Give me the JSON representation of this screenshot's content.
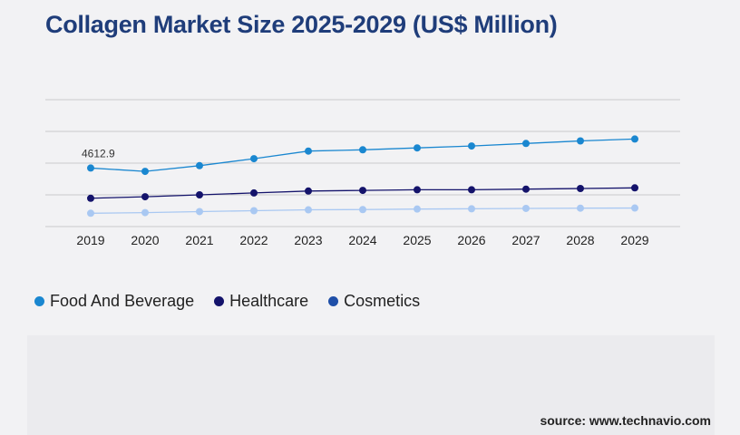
{
  "title": "Collagen Market Size 2025-2029 (US$ Million)",
  "source": "source: www.technavio.com",
  "legend": [
    {
      "label": "Food And Beverage",
      "color": "#1a87d0"
    },
    {
      "label": "Healthcare",
      "color": "#14136b"
    },
    {
      "label": "Cosmetics",
      "color": "#1f4fa8"
    }
  ],
  "chart_data": {
    "type": "line",
    "title": "Collagen Market Size 2025-2029 (US$ Million)",
    "x": [
      "2019",
      "2020",
      "2021",
      "2022",
      "2023",
      "2024",
      "2025",
      "2026",
      "2027",
      "2028",
      "2029"
    ],
    "ylim": [
      0,
      10000
    ],
    "grid": true,
    "legend_position": "bottom-left",
    "series": [
      {
        "name": "Food And Beverage",
        "color": "#1a87d0",
        "values": [
          4612.9,
          4350,
          4800,
          5350,
          5950,
          6050,
          6200,
          6350,
          6550,
          6750,
          6900
        ]
      },
      {
        "name": "Healthcare",
        "color": "#14136b",
        "values": [
          2230,
          2350,
          2500,
          2650,
          2800,
          2850,
          2900,
          2900,
          2950,
          3000,
          3050
        ]
      },
      {
        "name": "Cosmetics",
        "color": "#a9c8f2",
        "values": [
          1050,
          1100,
          1180,
          1250,
          1320,
          1340,
          1380,
          1400,
          1430,
          1450,
          1460
        ]
      }
    ],
    "annotations": [
      {
        "series": "Food And Beverage",
        "x": "2019",
        "text": "4612.9"
      }
    ]
  }
}
